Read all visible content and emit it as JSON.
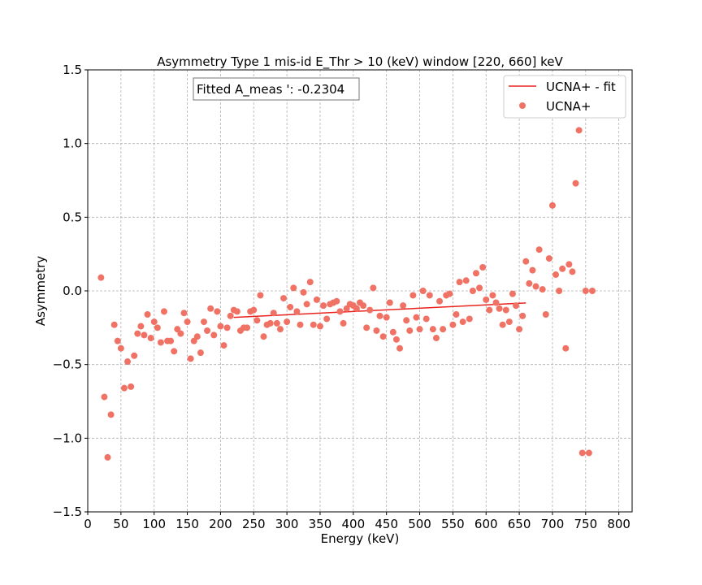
{
  "chart_data": {
    "type": "scatter",
    "title": "Asymmetry Type 1 mis-id  E_Thr > 10 (keV) window [220, 660] keV",
    "xlabel": "Energy (keV)",
    "ylabel": "Asymmetry",
    "xlim": [
      0,
      820
    ],
    "ylim": [
      -1.5,
      1.5
    ],
    "xticks": [
      0,
      50,
      100,
      150,
      200,
      250,
      300,
      350,
      400,
      450,
      500,
      550,
      600,
      650,
      700,
      750,
      800
    ],
    "yticks": [
      -1.5,
      -1.0,
      -0.5,
      0.0,
      0.5,
      1.0,
      1.5
    ],
    "ytick_labels": [
      "−1.5",
      "−1.0",
      "−0.5",
      "0.0",
      "0.5",
      "1.0",
      "1.5"
    ],
    "grid": true,
    "legend_position": "top-right",
    "annotation": "Fitted A_meas ': -0.2304",
    "colors": {
      "points": "#f07265",
      "fit": "#e8231e"
    },
    "series": [
      {
        "name": "UCNA+ - fit",
        "kind": "line",
        "x": [
          220,
          660
        ],
        "y": [
          -0.18,
          -0.082
        ]
      },
      {
        "name": "UCNA+",
        "kind": "scatter",
        "x": [
          20,
          25,
          30,
          35,
          40,
          45,
          50,
          55,
          60,
          65,
          70,
          75,
          80,
          85,
          90,
          95,
          100,
          105,
          110,
          115,
          120,
          125,
          130,
          135,
          140,
          145,
          150,
          155,
          160,
          165,
          170,
          175,
          180,
          185,
          190,
          195,
          200,
          205,
          210,
          215,
          220,
          225,
          230,
          235,
          240,
          245,
          250,
          255,
          260,
          265,
          270,
          275,
          280,
          285,
          290,
          295,
          300,
          305,
          310,
          315,
          320,
          325,
          330,
          335,
          340,
          345,
          350,
          355,
          360,
          365,
          370,
          375,
          380,
          385,
          390,
          395,
          400,
          405,
          410,
          415,
          420,
          425,
          430,
          435,
          440,
          445,
          450,
          455,
          460,
          465,
          470,
          475,
          480,
          485,
          490,
          495,
          500,
          505,
          510,
          515,
          520,
          525,
          530,
          535,
          540,
          545,
          550,
          555,
          560,
          565,
          570,
          575,
          580,
          585,
          590,
          595,
          600,
          605,
          610,
          615,
          620,
          625,
          630,
          635,
          640,
          645,
          650,
          655,
          660,
          665,
          670,
          675,
          680,
          685,
          690,
          695,
          700,
          705,
          710,
          715,
          720,
          725,
          730,
          735,
          740,
          745,
          750,
          755,
          760
        ],
        "y": [
          0.09,
          -0.72,
          -1.13,
          -0.84,
          -0.23,
          -0.34,
          -0.39,
          -0.66,
          -0.48,
          -0.65,
          -0.44,
          -0.29,
          -0.24,
          -0.3,
          -0.16,
          -0.32,
          -0.21,
          -0.25,
          -0.35,
          -0.14,
          -0.34,
          -0.34,
          -0.41,
          -0.26,
          -0.29,
          -0.15,
          -0.21,
          -0.46,
          -0.34,
          -0.31,
          -0.42,
          -0.21,
          -0.27,
          -0.12,
          -0.3,
          -0.14,
          -0.24,
          -0.37,
          -0.25,
          -0.17,
          -0.13,
          -0.14,
          -0.27,
          -0.25,
          -0.25,
          -0.14,
          -0.13,
          -0.2,
          -0.03,
          -0.31,
          -0.23,
          -0.22,
          -0.15,
          -0.22,
          -0.26,
          -0.05,
          -0.21,
          -0.11,
          0.02,
          -0.14,
          -0.23,
          -0.01,
          -0.09,
          0.06,
          -0.23,
          -0.06,
          -0.24,
          -0.1,
          -0.19,
          -0.09,
          -0.08,
          -0.07,
          -0.14,
          -0.22,
          -0.12,
          -0.09,
          -0.1,
          -0.12,
          -0.08,
          -0.1,
          -0.25,
          -0.13,
          0.02,
          -0.27,
          -0.17,
          -0.31,
          -0.18,
          -0.08,
          -0.28,
          -0.33,
          -0.39,
          -0.1,
          -0.2,
          -0.27,
          -0.03,
          -0.18,
          -0.26,
          0.0,
          -0.19,
          -0.03,
          -0.26,
          -0.32,
          -0.07,
          -0.26,
          -0.03,
          -0.02,
          -0.23,
          -0.16,
          0.06,
          -0.21,
          0.07,
          -0.19,
          0.0,
          0.12,
          0.02,
          0.16,
          -0.06,
          -0.13,
          -0.03,
          -0.08,
          -0.12,
          -0.23,
          -0.13,
          -0.21,
          -0.02,
          -0.1,
          -0.26,
          -0.17,
          0.2,
          0.05,
          0.14,
          0.03,
          0.28,
          0.01,
          -0.16,
          0.22,
          0.58,
          0.11,
          0.0,
          0.15,
          -0.39,
          0.18,
          0.13,
          0.73,
          1.09,
          -1.1,
          0.0,
          -1.1,
          0.0
        ]
      }
    ]
  }
}
